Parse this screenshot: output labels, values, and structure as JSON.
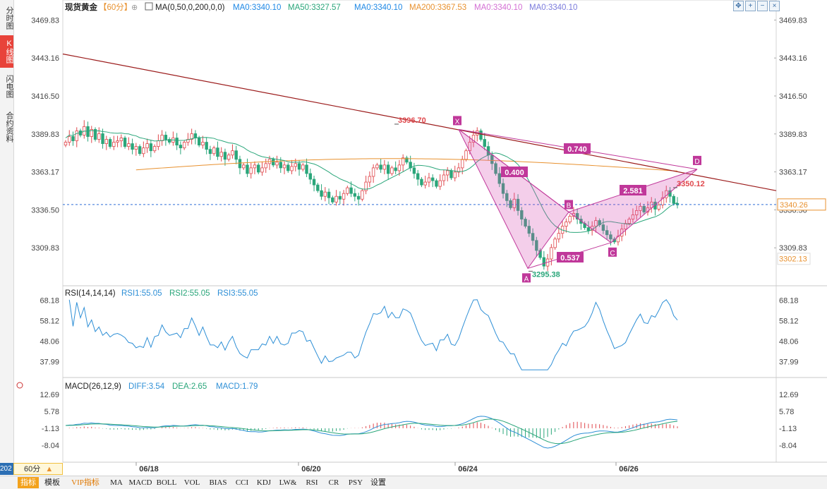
{
  "sidebar": {
    "tabs": [
      {
        "label": "分时图",
        "active": false
      },
      {
        "label": "K线图",
        "active": true
      },
      {
        "label": "闪电图",
        "active": false
      },
      {
        "label": "合约资料",
        "active": false
      }
    ]
  },
  "header": {
    "symbol": "现货黄金",
    "period": "【60分】",
    "ma_title": "MA(0,50,0,200,0,0)",
    "ma_items": [
      {
        "label": "MA0:3340.10",
        "color": "#1e88e5"
      },
      {
        "label": "MA50:3327.57",
        "color": "#2aa67a"
      },
      {
        "label": "MA0:3340.10",
        "color": "#1e88e5"
      },
      {
        "label": "MA200:3367.53",
        "color": "#e8912f"
      },
      {
        "label": "MA0:3340.10",
        "color": "#d36fd3"
      },
      {
        "label": "MA0:3340.10",
        "color": "#7b7bdc"
      }
    ]
  },
  "toolbar": {
    "icons": [
      "move-icon",
      "zoom-in-icon",
      "zoom-out-icon",
      "close-icon"
    ]
  },
  "bottom_bar": {
    "tabs": [
      "指标",
      "模板",
      "VIP指标",
      "MA",
      "MACD",
      "BOLL",
      "VOL",
      "BIAS",
      "CCI",
      "KDJ",
      "LW&",
      "RSI",
      "CR",
      "PSY",
      "设置"
    ],
    "active": "指标",
    "period_label": "60分",
    "period_arrow": "▲",
    "year_label": "202"
  },
  "colors": {
    "up": "#e0484d",
    "down": "#2aa67a",
    "ma50": "#2aa67a",
    "ma200": "#e8912f",
    "harmonic": "#c0389a",
    "trendline": "#9b1b1b",
    "price_line": "#2e6fd6",
    "rsi": "#2e8fd6",
    "macd_diff": "#2e8fd6",
    "macd_dea": "#2aa67a"
  },
  "chart_data": [
    {
      "type": "candlestick",
      "title": "现货黄金【60分】",
      "y_ticks": [
        "3469.83",
        "3443.16",
        "3416.50",
        "3389.83",
        "3363.17",
        "3336.50",
        "3309.83"
      ],
      "ylim": [
        3283.17,
        3473.0
      ],
      "x_ticks": [
        "06/18",
        "06/20",
        "06/24",
        "06/26"
      ],
      "current_price": "3340.26",
      "low_tag": "3302.13",
      "annotations": [
        {
          "text": "3396.70",
          "type": "high"
        },
        {
          "text": "3295.38",
          "type": "low"
        },
        {
          "text": "3350.12",
          "type": "last_high"
        }
      ],
      "moving_averages": [
        {
          "name": "MA50",
          "value": 3327.57
        },
        {
          "name": "MA200",
          "value": 3367.53
        }
      ],
      "harmonic_pattern": {
        "points": [
          {
            "label": "X",
            "value": 3393.0
          },
          {
            "label": "A",
            "value": 3295.4
          },
          {
            "label": "B",
            "value": 3335.0
          },
          {
            "label": "C",
            "value": 3313.5
          },
          {
            "label": "D",
            "value": 3365.0
          }
        ],
        "ratios": [
          "0.400",
          "0.537",
          "2.581",
          "0.740"
        ]
      },
      "trendline": {
        "start": 3446.0,
        "end": 3350.0
      },
      "price_path": [
        3384,
        3388,
        3385,
        3392,
        3389,
        3395,
        3388,
        3393,
        3386,
        3390,
        3383,
        3386,
        3381,
        3384,
        3385,
        3387,
        3381,
        3383,
        3379,
        3381,
        3376,
        3380,
        3383,
        3378,
        3381,
        3385,
        3389,
        3386,
        3384,
        3387,
        3382,
        3380,
        3384,
        3386,
        3390,
        3387,
        3382,
        3384,
        3379,
        3376,
        3380,
        3374,
        3377,
        3372,
        3375,
        3378,
        3372,
        3366,
        3368,
        3362,
        3366,
        3368,
        3363,
        3366,
        3369,
        3372,
        3368,
        3370,
        3366,
        3368,
        3364,
        3367,
        3369,
        3365,
        3368,
        3362,
        3358,
        3354,
        3350,
        3346,
        3349,
        3345,
        3342,
        3346,
        3344,
        3348,
        3352,
        3348,
        3346,
        3344,
        3350,
        3356,
        3360,
        3366,
        3368,
        3365,
        3368,
        3362,
        3366,
        3364,
        3368,
        3373,
        3370,
        3366,
        3362,
        3358,
        3354,
        3356,
        3359,
        3357,
        3353,
        3357,
        3361,
        3364,
        3359,
        3363,
        3366,
        3372,
        3378,
        3384,
        3389,
        3392,
        3386,
        3381,
        3375,
        3369,
        3362,
        3355,
        3348,
        3343,
        3338,
        3344,
        3336,
        3330,
        3325,
        3320,
        3315,
        3308,
        3303,
        3297,
        3302,
        3310,
        3316,
        3320,
        3325,
        3328,
        3332,
        3334,
        3330,
        3327,
        3324,
        3322,
        3325,
        3329,
        3326,
        3322,
        3319,
        3316,
        3314,
        3318,
        3323,
        3327,
        3330,
        3333,
        3336,
        3339,
        3335,
        3338,
        3342,
        3337,
        3340,
        3345,
        3350,
        3346,
        3341,
        3340
      ]
    },
    {
      "type": "line",
      "title": "RSI(14,14,14)",
      "series": [
        {
          "name": "RSI1",
          "label": "RSI1:55.05"
        },
        {
          "name": "RSI2",
          "label": "RSI2:55.05"
        },
        {
          "name": "RSI3",
          "label": "RSI3:55.05"
        }
      ],
      "y_ticks": [
        "68.18",
        "58.12",
        "48.06",
        "37.99"
      ],
      "ylim": [
        33.0,
        70.5
      ]
    },
    {
      "type": "bar",
      "title": "MACD(26,12,9)",
      "series": [
        {
          "name": "DIFF",
          "label": "DIFF:3.54"
        },
        {
          "name": "DEA",
          "label": "DEA:2.65"
        },
        {
          "name": "MACD",
          "label": "MACD:1.79"
        }
      ],
      "y_ticks": [
        "12.69",
        "5.78",
        "-1.13",
        "-8.04"
      ],
      "ylim": [
        -15.0,
        15.0
      ]
    }
  ]
}
